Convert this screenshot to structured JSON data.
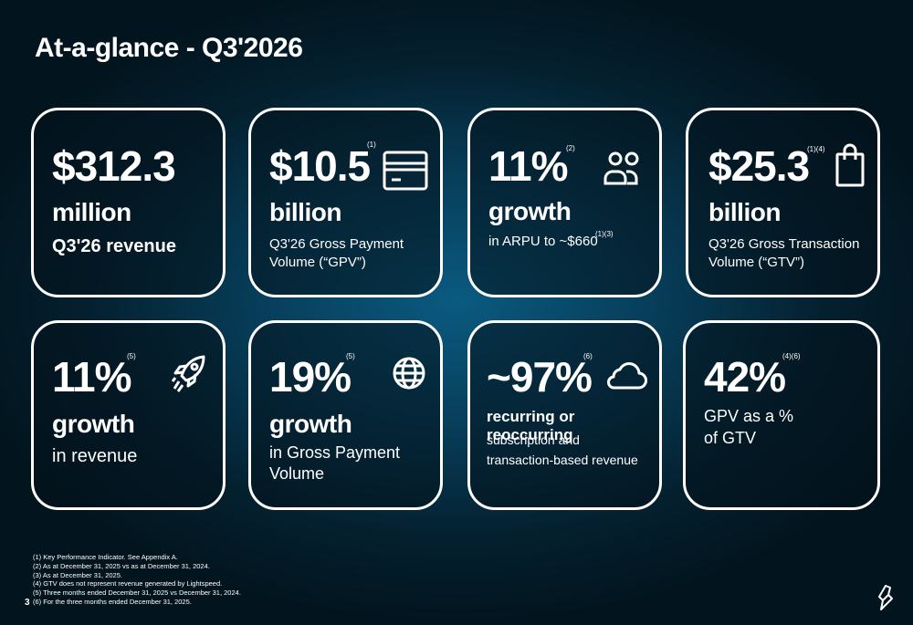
{
  "title": "At-a-glance - Q3'2026",
  "cards": [
    {
      "value": "$312.3",
      "unit": "million",
      "desc": "Q3'26 revenue",
      "icon": "none"
    },
    {
      "value": "$10.5",
      "note": "(1)",
      "unit": "billion",
      "desc_lines": [
        "Q3'26 Gross Payment",
        "Volume (“GPV”)"
      ],
      "icon": "credit-card-icon"
    },
    {
      "value": "11%",
      "note": "(2)",
      "unit": "growth",
      "desc": "in ARPU to ~$660",
      "desc_note": "(1)(3)",
      "icon": "users-icon"
    },
    {
      "value": "$25.3",
      "note": "(1)(4)",
      "unit": "billion",
      "desc_lines": [
        "Q3'26 Gross Transaction",
        "Volume (“GTV”)"
      ],
      "icon": "shopping-bag-icon"
    },
    {
      "value": "11%",
      "note": "(5)",
      "unit": "growth",
      "desc": "in revenue",
      "icon": "rocket-icon"
    },
    {
      "value": "19%",
      "note": "(5)",
      "unit": "growth",
      "desc_lines": [
        "in Gross Payment",
        "Volume"
      ],
      "icon": "globe-icon"
    },
    {
      "value": "~97%",
      "note": "(6)",
      "unit": "recurring or reoccurring",
      "desc_lines": [
        "subscription and",
        "transaction-based revenue"
      ],
      "icon": "cloud-icon"
    },
    {
      "value": "42%",
      "note": "(4)(6)",
      "desc_lines": [
        "GPV as a %",
        "of GTV"
      ],
      "icon": "none"
    }
  ],
  "footnotes": [
    "(1) Key Performance Indicator. See Appendix A.",
    "(2) As at December 31, 2025 vs as at December 31, 2024.",
    "(3) As at December 31, 2025.",
    "(4) GTV does not represent revenue generated by Lightspeed.",
    "(5) Three months ended December 31, 2025 vs December 31, 2024.",
    "(6) For the three months ended December 31, 2025."
  ],
  "page_number": "3",
  "colors": {
    "accent": "#ffffff",
    "background": "#04202f",
    "glow": "#0a5a80"
  }
}
